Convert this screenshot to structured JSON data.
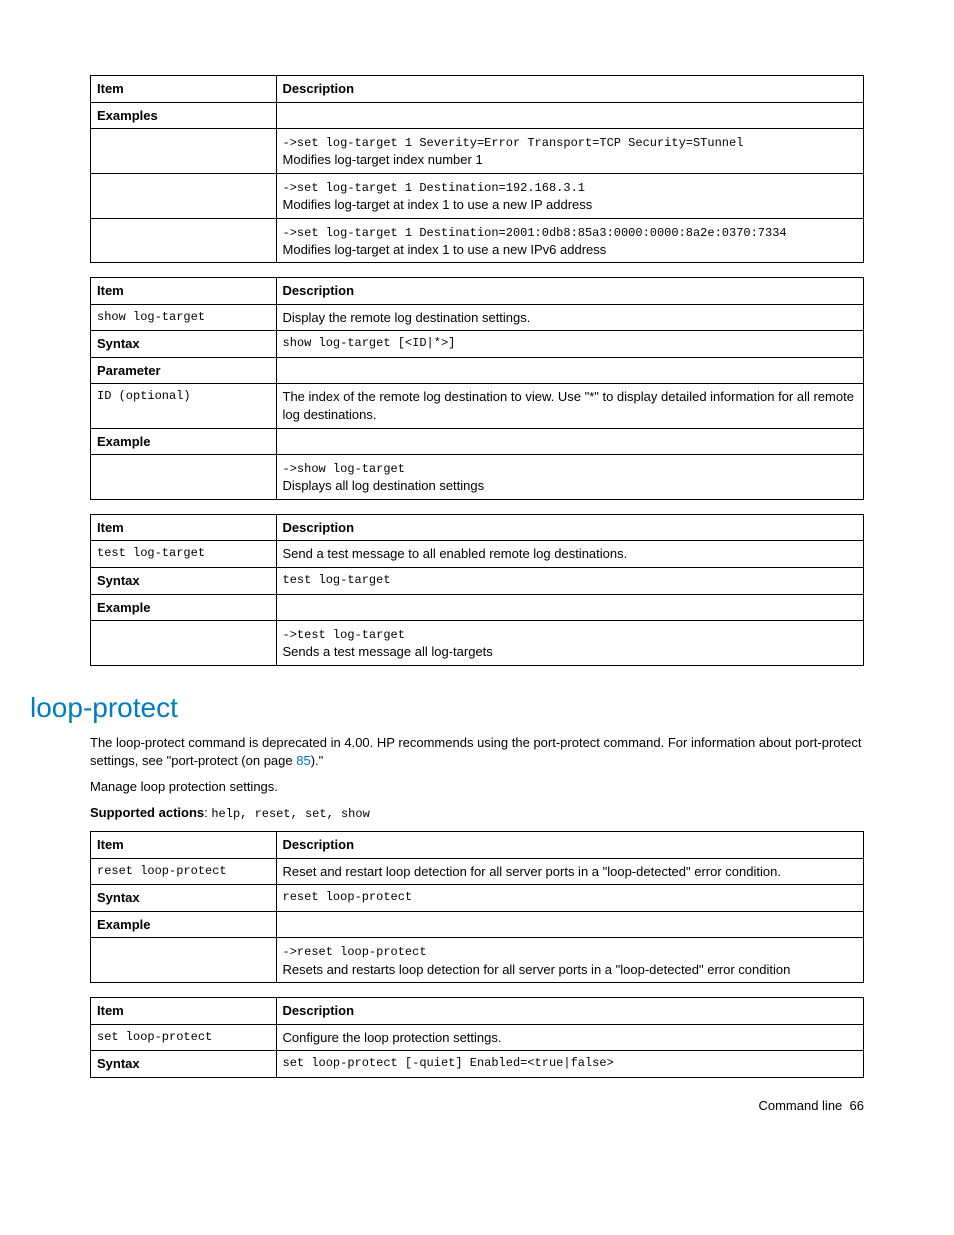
{
  "tables": {
    "t1": {
      "headers": [
        "Item",
        "Description"
      ],
      "rows": [
        {
          "c1_bold": "Examples",
          "c2": ""
        },
        {
          "c1": "",
          "c2_mono": "->set log-target 1 Severity=Error Transport=TCP Security=STunnel",
          "c2_text": "Modifies log-target index number 1"
        },
        {
          "c1": "",
          "c2_mono": "->set log-target 1 Destination=192.168.3.1",
          "c2_text": "Modifies log-target at index 1 to use a new IP address"
        },
        {
          "c1": "",
          "c2_mono": "->set log-target 1 Destination=2001:0db8:85a3:0000:0000:8a2e:0370:7334",
          "c2_text": "Modifies log-target at index 1 to use a new IPv6 address"
        }
      ]
    },
    "t2": {
      "headers": [
        "Item",
        "Description"
      ],
      "rows": [
        {
          "c1_mono": "show log-target",
          "c2": "Display the remote log destination settings."
        },
        {
          "c1_bold": "Syntax",
          "c2_mono": "show log-target [<ID|*>]"
        },
        {
          "c1_bold": "Parameter",
          "c2": ""
        },
        {
          "c1_mono": "ID (optional)",
          "c2": "The index of the remote log destination to view. Use \"*\" to display detailed information for all remote log destinations."
        },
        {
          "c1_bold": "Example",
          "c2": ""
        },
        {
          "c1": "",
          "c2_mono": "->show log-target",
          "c2_text": "Displays all log destination settings"
        }
      ]
    },
    "t3": {
      "headers": [
        "Item",
        "Description"
      ],
      "rows": [
        {
          "c1_mono": "test log-target",
          "c2": "Send a test message to all enabled remote log destinations."
        },
        {
          "c1_bold": "Syntax",
          "c2_mono": "test log-target"
        },
        {
          "c1_bold": "Example",
          "c2": ""
        },
        {
          "c1": "",
          "c2_mono": "->test log-target",
          "c2_text": "Sends a test message all log-targets"
        }
      ]
    },
    "t4": {
      "headers": [
        "Item",
        "Description"
      ],
      "rows": [
        {
          "c1_mono": "reset loop-protect",
          "c2": "Reset and restart loop detection for all server ports in a \"loop-detected\" error condition."
        },
        {
          "c1_bold": "Syntax",
          "c2_mono": "reset loop-protect"
        },
        {
          "c1_bold": "Example",
          "c2": ""
        },
        {
          "c1": "",
          "c2_mono": "->reset loop-protect",
          "c2_text": "Resets and restarts loop detection for all server ports in a \"loop-detected\" error condition"
        }
      ]
    },
    "t5": {
      "headers": [
        "Item",
        "Description"
      ],
      "rows": [
        {
          "c1_mono": "set loop-protect",
          "c2": "Configure the loop protection settings."
        },
        {
          "c1_bold": "Syntax",
          "c2_mono": "set loop-protect [-quiet] Enabled=<true|false>"
        }
      ]
    }
  },
  "section_title": "loop-protect",
  "para1_a": "The loop-protect command is deprecated in 4.00. HP recommends using the port-protect command. For information about port-protect settings, see \"port-protect (on page ",
  "para1_link": "85",
  "para1_b": ").\"",
  "para2": "Manage loop protection settings.",
  "supported_label": "Supported actions",
  "supported_actions": "help, reset, set, show",
  "footer_text": "Command line",
  "footer_page": "66"
}
